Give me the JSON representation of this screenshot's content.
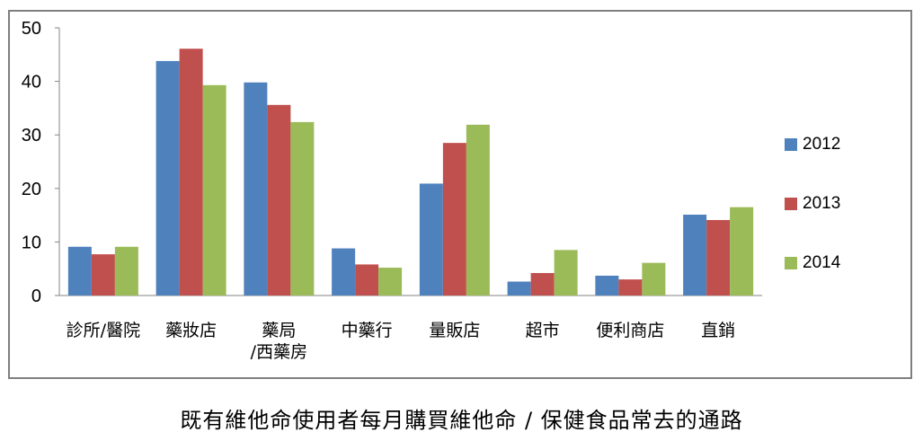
{
  "caption": "既有維他命使用者每月購買維他命 / 保健食品常去的通路",
  "chart_data": {
    "type": "bar",
    "categories": [
      "診所/醫院",
      "藥妝店",
      "藥局\n/西藥房",
      "中藥行",
      "量販店",
      "超市",
      "便利商店",
      "直銷"
    ],
    "series": [
      {
        "name": "2012",
        "color": "#4f81bd",
        "values": [
          9.1,
          43.8,
          39.8,
          8.8,
          20.9,
          2.6,
          3.7,
          15.1
        ]
      },
      {
        "name": "2013",
        "color": "#c0504d",
        "values": [
          7.7,
          46.1,
          35.6,
          5.8,
          28.5,
          4.2,
          3.0,
          14.1
        ]
      },
      {
        "name": "2014",
        "color": "#9bbb59",
        "values": [
          9.1,
          39.3,
          32.4,
          5.2,
          31.9,
          8.5,
          6.1,
          16.5
        ]
      }
    ],
    "yticks": [
      0,
      10,
      20,
      30,
      40,
      50
    ],
    "ylim": [
      0,
      50
    ],
    "legend_position": "right",
    "grid": false,
    "title": "",
    "xlabel": "",
    "ylabel": ""
  }
}
